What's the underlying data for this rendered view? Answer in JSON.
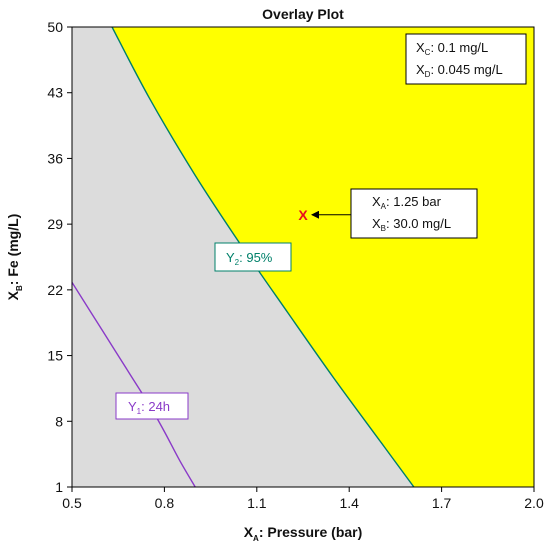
{
  "chart_data": {
    "type": "contour",
    "title": "Overlay Plot",
    "xlabel": {
      "var": "X",
      "sub": "A",
      "text": ": Pressure (bar)"
    },
    "ylabel": {
      "var": "X",
      "sub": "B",
      "text": ": Fe (mg/L)"
    },
    "xlim": [
      0.5,
      2.0
    ],
    "ylim": [
      1,
      50
    ],
    "x_ticks": [
      "0.5",
      "0.8",
      "1.1",
      "1.4",
      "1.7",
      "2.0"
    ],
    "y_ticks": [
      "1",
      "8",
      "15",
      "22",
      "29",
      "36",
      "43",
      "50"
    ],
    "grid": false,
    "colors": {
      "feasible": "#ffff00",
      "infeasible": "#dcdcdc",
      "y1": "#8a3ac8",
      "y2": "#00806a",
      "marker": "#e8101e"
    },
    "contours": [
      {
        "name": "Y2",
        "var": "Y",
        "sub": "2",
        "label_text": ": 95%",
        "color": "#00806a",
        "x": [
          0.63,
          0.75,
          0.9,
          1.05,
          1.2,
          1.35,
          1.5,
          1.61
        ],
        "y": [
          50,
          42.5,
          34.2,
          26.7,
          19.6,
          12.6,
          5.9,
          1
        ]
      },
      {
        "name": "Y1",
        "var": "Y",
        "sub": "1",
        "label_text": ": 24h",
        "color": "#8a3ac8",
        "x": [
          0.5,
          0.6,
          0.7,
          0.75,
          0.8,
          0.85,
          0.9
        ],
        "y": [
          22.8,
          17.6,
          12.4,
          9.8,
          6.9,
          3.8,
          1
        ]
      }
    ],
    "constants": [
      {
        "var": "X",
        "sub": "C",
        "text": ": 0.1 mg/L"
      },
      {
        "var": "X",
        "sub": "D",
        "text": ": 0.045 mg/L"
      }
    ],
    "optimum": {
      "marker": "X",
      "x": 1.25,
      "y": 30.0,
      "labels": [
        {
          "var": "X",
          "sub": "A",
          "text": ": 1.25 bar"
        },
        {
          "var": "X",
          "sub": "B",
          "text": ": 30.0 mg/L"
        }
      ]
    }
  }
}
